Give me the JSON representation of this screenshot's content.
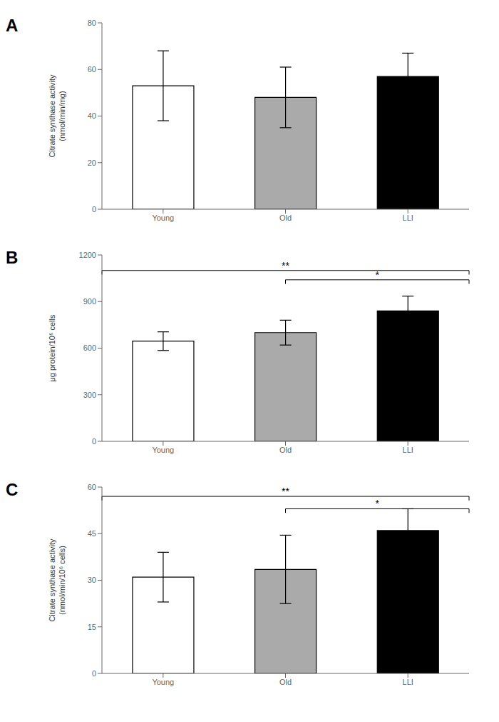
{
  "chart_data": [
    {
      "type": "bar",
      "title": "A",
      "categories": [
        "Young",
        "Old",
        "LLI"
      ],
      "values": [
        53,
        48,
        57
      ],
      "errors": [
        15,
        13,
        10
      ],
      "colors": [
        "#ffffff",
        "#aaaaaa",
        "#000000"
      ],
      "ylabel": "Citrate synthase activity\n(nmol/min/mg)",
      "ylim": [
        0,
        80
      ],
      "yticks": [
        0,
        20,
        40,
        60,
        80
      ],
      "annotations": []
    },
    {
      "type": "bar",
      "title": "B",
      "categories": [
        "Young",
        "Old",
        "LLI"
      ],
      "values": [
        645,
        700,
        840
      ],
      "errors": [
        60,
        80,
        95
      ],
      "colors": [
        "#ffffff",
        "#aaaaaa",
        "#000000"
      ],
      "ylabel": "μg protein/10⁶ cells",
      "ylim": [
        0,
        1200
      ],
      "yticks": [
        0,
        300,
        600,
        900,
        1200
      ],
      "annotations": [
        {
          "text": "**",
          "from": "Young",
          "to": "LLI",
          "y": 1100
        },
        {
          "text": "*",
          "from": "Old",
          "to": "LLI",
          "y": 1040
        }
      ]
    },
    {
      "type": "bar",
      "title": "C",
      "categories": [
        "Young",
        "Old",
        "LLI"
      ],
      "values": [
        31,
        33.5,
        46
      ],
      "errors": [
        8,
        11,
        7
      ],
      "colors": [
        "#ffffff",
        "#aaaaaa",
        "#000000"
      ],
      "ylabel": "Citrate synthase activity\n(nmol/min/10⁶ cells)",
      "ylim": [
        0,
        60
      ],
      "yticks": [
        0,
        15,
        30,
        45,
        60
      ],
      "annotations": [
        {
          "text": "**",
          "from": "Young",
          "to": "LLI",
          "y": 57
        },
        {
          "text": "*",
          "from": "Old",
          "to": "LLI",
          "y": 53
        }
      ]
    }
  ]
}
